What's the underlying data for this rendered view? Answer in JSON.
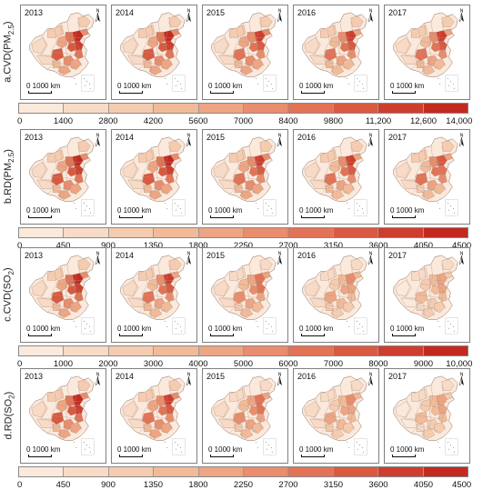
{
  "rows": [
    {
      "id": "a",
      "label_main": "a.CVD(PM",
      "label_sub": "2.5",
      "label_close": ")",
      "years": [
        "2013",
        "2014",
        "2015",
        "2016",
        "2017"
      ],
      "intensity": [
        1.0,
        0.95,
        0.9,
        0.85,
        0.85
      ],
      "scale_label": "0  1000 km",
      "legend_ticks": [
        "0",
        "1400",
        "2800",
        "4200",
        "5600",
        "7000",
        "8400",
        "9800",
        "11,200",
        "12,600",
        "14,000"
      ]
    },
    {
      "id": "b",
      "label_main": "b.RD(PM",
      "label_sub": "2.5",
      "label_close": ")",
      "years": [
        "2013",
        "2014",
        "2015",
        "2016",
        "2017"
      ],
      "intensity": [
        1.0,
        0.95,
        0.9,
        0.85,
        0.8
      ],
      "scale_label": "0  1000 km",
      "legend_ticks": [
        "0",
        "450",
        "900",
        "1350",
        "1800",
        "2250",
        "2700",
        "3150",
        "3600",
        "4050",
        "4500"
      ]
    },
    {
      "id": "c",
      "label_main": "c.CVD(SO",
      "label_sub": "2",
      "label_close": ")",
      "years": [
        "2013",
        "2014",
        "2015",
        "2016",
        "2017"
      ],
      "intensity": [
        1.0,
        0.85,
        0.7,
        0.55,
        0.45
      ],
      "scale_label": "0  1000 km",
      "legend_ticks": [
        "0",
        "1000",
        "2000",
        "3000",
        "4000",
        "5000",
        "6000",
        "7000",
        "8000",
        "9000",
        "10,000"
      ]
    },
    {
      "id": "d",
      "label_main": "d.RD(SO",
      "label_sub": "2",
      "label_close": ")",
      "years": [
        "2013",
        "2014",
        "2015",
        "2016",
        "2017"
      ],
      "intensity": [
        1.0,
        0.9,
        0.7,
        0.55,
        0.45
      ],
      "scale_label": "0  1000 km",
      "legend_ticks": [
        "0",
        "450",
        "900",
        "1350",
        "1800",
        "2250",
        "2700",
        "3150",
        "3600",
        "4050",
        "4500"
      ]
    }
  ],
  "legend_colors": [
    "#fbe9dc",
    "#f8dbc6",
    "#f5ccb0",
    "#f1bb99",
    "#eda583",
    "#e88d6d",
    "#e27356",
    "#d95941",
    "#ce3e2e",
    "#c22a20"
  ],
  "north_arrow_letter": "N"
}
